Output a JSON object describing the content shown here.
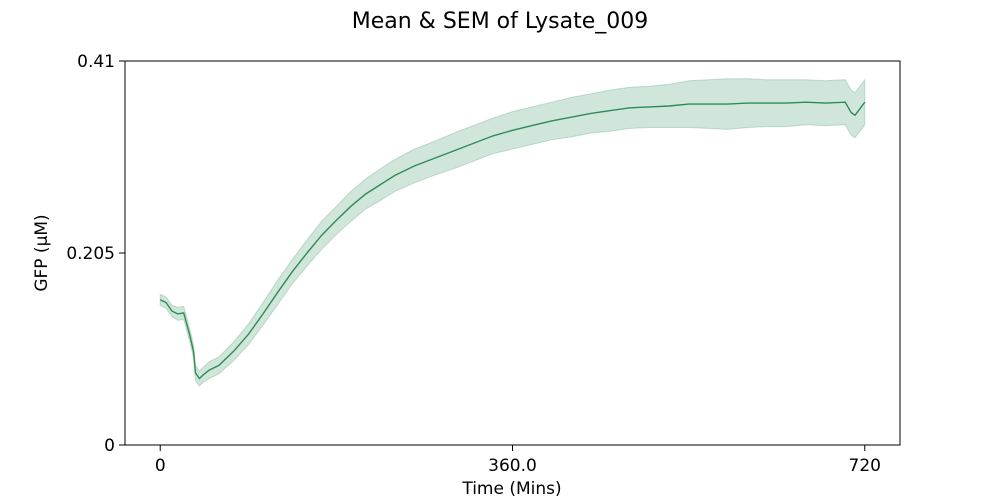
{
  "chart_data": {
    "type": "line",
    "title": "Mean & SEM of Lysate_009",
    "xlabel": "Time (Mins)",
    "ylabel": "GFP (μM)",
    "xlim": [
      -36,
      756
    ],
    "ylim": [
      0,
      0.41
    ],
    "x_ticks": [
      0,
      360,
      720
    ],
    "x_tick_labels": [
      "0",
      "360.0",
      "720"
    ],
    "y_ticks": [
      0,
      0.205,
      0.41
    ],
    "y_tick_labels": [
      "0",
      "0.205",
      "0.41"
    ],
    "grid": false,
    "legend": "none",
    "series": [
      {
        "color": "#2e8b57",
        "band_color": "#2e8b57",
        "band_opacity": 0.22,
        "x": [
          0,
          6,
          12,
          18,
          24,
          30,
          34,
          36,
          40,
          44,
          50,
          60,
          75,
          90,
          105,
          120,
          135,
          150,
          165,
          180,
          195,
          210,
          225,
          240,
          260,
          280,
          300,
          320,
          340,
          360,
          380,
          400,
          420,
          440,
          460,
          480,
          500,
          520,
          540,
          560,
          580,
          600,
          620,
          640,
          660,
          680,
          700,
          706,
          710,
          720
        ],
        "mean": [
          0.155,
          0.152,
          0.143,
          0.14,
          0.141,
          0.118,
          0.1,
          0.077,
          0.071,
          0.075,
          0.08,
          0.085,
          0.1,
          0.118,
          0.14,
          0.163,
          0.185,
          0.205,
          0.224,
          0.24,
          0.255,
          0.268,
          0.278,
          0.288,
          0.298,
          0.306,
          0.314,
          0.322,
          0.33,
          0.336,
          0.341,
          0.346,
          0.35,
          0.354,
          0.357,
          0.36,
          0.361,
          0.362,
          0.364,
          0.364,
          0.364,
          0.365,
          0.365,
          0.365,
          0.366,
          0.365,
          0.366,
          0.355,
          0.352,
          0.366
        ],
        "sem": [
          0.006,
          0.006,
          0.006,
          0.007,
          0.007,
          0.007,
          0.007,
          0.008,
          0.008,
          0.008,
          0.009,
          0.009,
          0.01,
          0.011,
          0.012,
          0.013,
          0.013,
          0.014,
          0.015,
          0.015,
          0.016,
          0.016,
          0.017,
          0.017,
          0.018,
          0.018,
          0.019,
          0.019,
          0.019,
          0.02,
          0.02,
          0.02,
          0.021,
          0.021,
          0.022,
          0.022,
          0.022,
          0.023,
          0.025,
          0.026,
          0.027,
          0.026,
          0.025,
          0.025,
          0.024,
          0.024,
          0.024,
          0.024,
          0.024,
          0.024
        ]
      }
    ]
  }
}
